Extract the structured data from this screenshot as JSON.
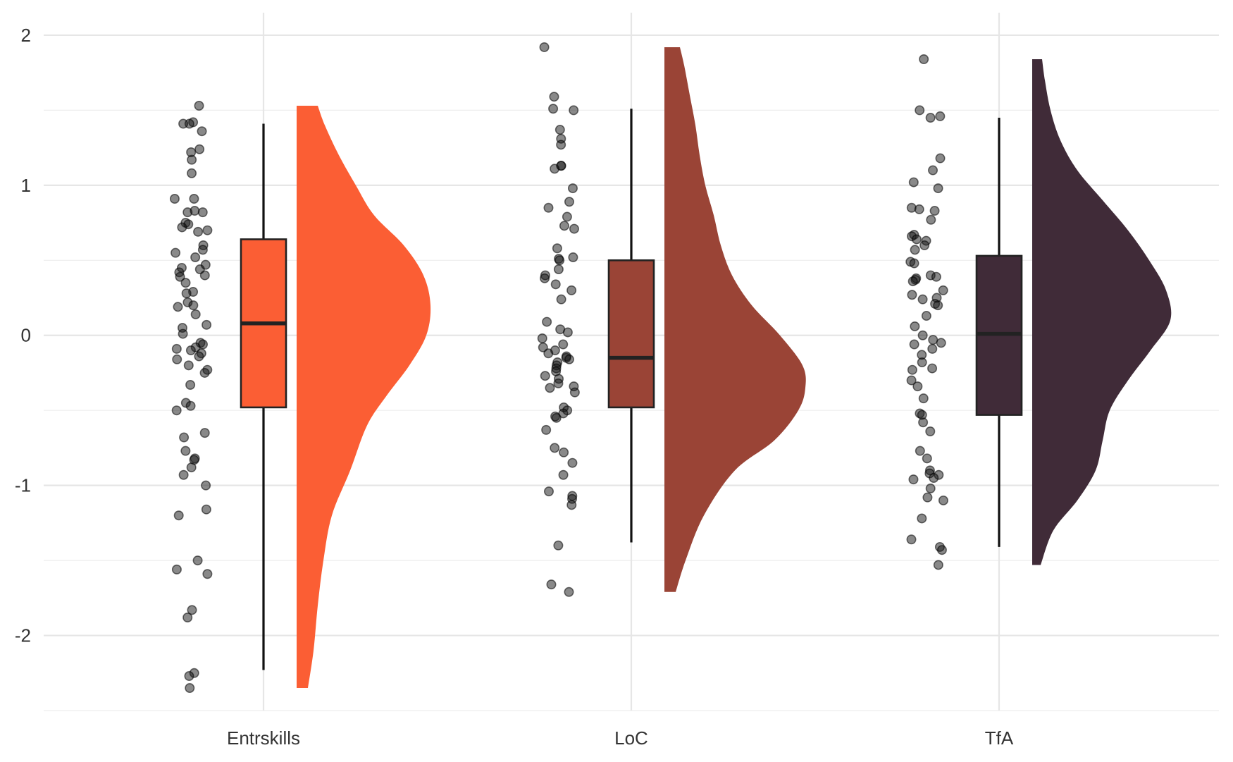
{
  "chart_data": {
    "type": "raincloud",
    "title": "",
    "xlabel": "",
    "ylabel": "",
    "ylim": [
      -2.5,
      2.15
    ],
    "y_ticks": [
      -2,
      -1,
      0,
      1,
      2
    ],
    "y_tick_labels": [
      "-2",
      "-1",
      "0",
      "1",
      "2"
    ],
    "grid": true,
    "categories": [
      "Entrskills",
      "LoC",
      "TfA"
    ],
    "colors": [
      "#FB5E34",
      "#9A4436",
      "#402B38"
    ],
    "series": [
      {
        "name": "Entrskills",
        "box": {
          "whisker_low": -2.23,
          "q1": -0.48,
          "median": 0.08,
          "q3": 0.64,
          "whisker_high": 1.41
        },
        "density": [
          [
            -2.35,
            0.08
          ],
          [
            -2.1,
            0.12
          ],
          [
            -1.8,
            0.15
          ],
          [
            -1.5,
            0.19
          ],
          [
            -1.2,
            0.25
          ],
          [
            -0.9,
            0.38
          ],
          [
            -0.6,
            0.5
          ],
          [
            -0.4,
            0.64
          ],
          [
            -0.2,
            0.8
          ],
          [
            0.0,
            0.92
          ],
          [
            0.2,
            0.95
          ],
          [
            0.4,
            0.9
          ],
          [
            0.6,
            0.76
          ],
          [
            0.8,
            0.55
          ],
          [
            1.0,
            0.42
          ],
          [
            1.2,
            0.3
          ],
          [
            1.4,
            0.2
          ],
          [
            1.53,
            0.15
          ]
        ],
        "points": [
          1.53,
          1.42,
          1.41,
          1.41,
          1.36,
          1.24,
          1.22,
          1.17,
          1.08,
          0.91,
          0.91,
          0.83,
          0.82,
          0.82,
          0.75,
          0.74,
          0.72,
          0.7,
          0.69,
          0.6,
          0.57,
          0.55,
          0.52,
          0.47,
          0.45,
          0.44,
          0.42,
          0.4,
          0.39,
          0.35,
          0.29,
          0.28,
          0.22,
          0.2,
          0.19,
          0.14,
          0.07,
          0.05,
          0.01,
          -0.05,
          -0.06,
          -0.08,
          -0.09,
          -0.1,
          -0.12,
          -0.14,
          -0.16,
          -0.2,
          -0.23,
          -0.25,
          -0.33,
          -0.45,
          -0.47,
          -0.5,
          -0.65,
          -0.68,
          -0.77,
          -0.82,
          -0.83,
          -0.88,
          -0.93,
          -1.0,
          -1.16,
          -1.2,
          -1.5,
          -1.56,
          -1.59,
          -1.83,
          -1.88,
          -2.25,
          -2.27,
          -2.35
        ]
      },
      {
        "name": "LoC",
        "box": {
          "whisker_low": -1.38,
          "q1": -0.48,
          "median": -0.15,
          "q3": 0.5,
          "whisker_high": 1.51
        },
        "density": [
          [
            -1.71,
            0.08
          ],
          [
            -1.5,
            0.15
          ],
          [
            -1.2,
            0.28
          ],
          [
            -0.9,
            0.5
          ],
          [
            -0.7,
            0.78
          ],
          [
            -0.5,
            0.95
          ],
          [
            -0.35,
            1.0
          ],
          [
            -0.2,
            0.98
          ],
          [
            0.0,
            0.82
          ],
          [
            0.2,
            0.62
          ],
          [
            0.4,
            0.48
          ],
          [
            0.6,
            0.4
          ],
          [
            0.8,
            0.35
          ],
          [
            1.0,
            0.29
          ],
          [
            1.2,
            0.25
          ],
          [
            1.4,
            0.22
          ],
          [
            1.6,
            0.18
          ],
          [
            1.8,
            0.14
          ],
          [
            1.92,
            0.11
          ]
        ],
        "points": [
          1.92,
          1.59,
          1.51,
          1.5,
          1.37,
          1.31,
          1.27,
          1.13,
          1.13,
          1.11,
          0.98,
          0.89,
          0.85,
          0.79,
          0.73,
          0.71,
          0.58,
          0.52,
          0.51,
          0.5,
          0.44,
          0.4,
          0.38,
          0.34,
          0.3,
          0.24,
          0.09,
          0.04,
          0.02,
          -0.02,
          -0.06,
          -0.08,
          -0.1,
          -0.12,
          -0.14,
          -0.15,
          -0.16,
          -0.18,
          -0.2,
          -0.22,
          -0.24,
          -0.27,
          -0.29,
          -0.32,
          -0.34,
          -0.35,
          -0.38,
          -0.48,
          -0.5,
          -0.52,
          -0.54,
          -0.55,
          -0.63,
          -0.75,
          -0.78,
          -0.85,
          -0.93,
          -1.04,
          -1.07,
          -1.09,
          -1.13,
          -1.4,
          -1.66,
          -1.71
        ]
      },
      {
        "name": "TfA",
        "box": {
          "whisker_low": -1.41,
          "q1": -0.53,
          "median": 0.01,
          "q3": 0.53,
          "whisker_high": 1.45
        },
        "density": [
          [
            -1.53,
            0.06
          ],
          [
            -1.3,
            0.15
          ],
          [
            -1.1,
            0.32
          ],
          [
            -0.9,
            0.45
          ],
          [
            -0.7,
            0.5
          ],
          [
            -0.5,
            0.55
          ],
          [
            -0.3,
            0.68
          ],
          [
            -0.1,
            0.84
          ],
          [
            0.1,
            0.98
          ],
          [
            0.3,
            0.95
          ],
          [
            0.5,
            0.83
          ],
          [
            0.7,
            0.68
          ],
          [
            0.9,
            0.5
          ],
          [
            1.1,
            0.32
          ],
          [
            1.3,
            0.2
          ],
          [
            1.5,
            0.13
          ],
          [
            1.7,
            0.09
          ],
          [
            1.84,
            0.07
          ]
        ],
        "points": [
          1.84,
          1.5,
          1.46,
          1.45,
          1.18,
          1.1,
          1.02,
          0.98,
          0.85,
          0.84,
          0.83,
          0.77,
          0.67,
          0.66,
          0.64,
          0.63,
          0.6,
          0.57,
          0.49,
          0.48,
          0.4,
          0.39,
          0.38,
          0.37,
          0.36,
          0.3,
          0.27,
          0.25,
          0.24,
          0.21,
          0.2,
          0.13,
          0.06,
          0.0,
          -0.03,
          -0.05,
          -0.06,
          -0.09,
          -0.13,
          -0.18,
          -0.22,
          -0.23,
          -0.3,
          -0.34,
          -0.42,
          -0.52,
          -0.53,
          -0.58,
          -0.64,
          -0.77,
          -0.82,
          -0.9,
          -0.92,
          -0.93,
          -0.95,
          -0.96,
          -1.02,
          -1.08,
          -1.1,
          -1.22,
          -1.36,
          -1.41,
          -1.43,
          -1.53
        ]
      }
    ]
  }
}
